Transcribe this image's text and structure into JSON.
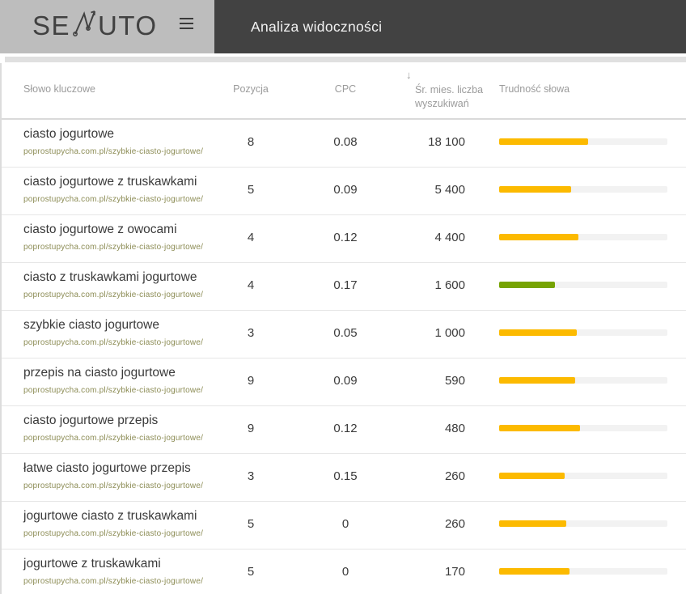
{
  "header": {
    "logo_prefix": "SE",
    "logo_suffix": "UTO",
    "title": "Analiza widoczności"
  },
  "columns": {
    "keyword": "Słowo kluczowe",
    "position": "Pozycja",
    "cpc": "CPC",
    "volume": "Śr. mies. liczba wyszukiwań",
    "difficulty": "Trudność słowa",
    "sort_icon": "↓"
  },
  "colors": {
    "topbar_left_bg": "#bdbdbd",
    "topbar_dark_bg": "#424242",
    "difficulty_amber": "#fcba00",
    "difficulty_green": "#76a303",
    "url_link": "#8c8c55"
  },
  "table": {
    "rows": [
      {
        "keyword": "ciasto jogurtowe",
        "url": "poprostupycha.com.pl/szybkie-ciasto-jogurtowe/",
        "position": "8",
        "cpc": "0.08",
        "volume": "18 100",
        "difficulty_pct": 53,
        "difficulty_color": "#fcba00"
      },
      {
        "keyword": "ciasto jogurtowe z truskawkami",
        "url": "poprostupycha.com.pl/szybkie-ciasto-jogurtowe/",
        "position": "5",
        "cpc": "0.09",
        "volume": "5 400",
        "difficulty_pct": 43,
        "difficulty_color": "#fcba00"
      },
      {
        "keyword": "ciasto jogurtowe z owocami",
        "url": "poprostupycha.com.pl/szybkie-ciasto-jogurtowe/",
        "position": "4",
        "cpc": "0.12",
        "volume": "4 400",
        "difficulty_pct": 47,
        "difficulty_color": "#fcba00"
      },
      {
        "keyword": "ciasto z truskawkami jogurtowe",
        "url": "poprostupycha.com.pl/szybkie-ciasto-jogurtowe/",
        "position": "4",
        "cpc": "0.17",
        "volume": "1 600",
        "difficulty_pct": 33,
        "difficulty_color": "#76a303"
      },
      {
        "keyword": "szybkie ciasto jogurtowe",
        "url": "poprostupycha.com.pl/szybkie-ciasto-jogurtowe/",
        "position": "3",
        "cpc": "0.05",
        "volume": "1 000",
        "difficulty_pct": 46,
        "difficulty_color": "#fcba00"
      },
      {
        "keyword": "przepis na ciasto jogurtowe",
        "url": "poprostupycha.com.pl/szybkie-ciasto-jogurtowe/",
        "position": "9",
        "cpc": "0.09",
        "volume": "590",
        "difficulty_pct": 45,
        "difficulty_color": "#fcba00"
      },
      {
        "keyword": "ciasto jogurtowe przepis",
        "url": "poprostupycha.com.pl/szybkie-ciasto-jogurtowe/",
        "position": "9",
        "cpc": "0.12",
        "volume": "480",
        "difficulty_pct": 48,
        "difficulty_color": "#fcba00"
      },
      {
        "keyword": "łatwe ciasto jogurtowe przepis",
        "url": "poprostupycha.com.pl/szybkie-ciasto-jogurtowe/",
        "position": "3",
        "cpc": "0.15",
        "volume": "260",
        "difficulty_pct": 39,
        "difficulty_color": "#fcba00"
      },
      {
        "keyword": "jogurtowe ciasto z truskawkami",
        "url": "poprostupycha.com.pl/szybkie-ciasto-jogurtowe/",
        "position": "5",
        "cpc": "0",
        "volume": "260",
        "difficulty_pct": 40,
        "difficulty_color": "#fcba00"
      },
      {
        "keyword": "jogurtowe z truskawkami",
        "url": "poprostupycha.com.pl/szybkie-ciasto-jogurtowe/",
        "position": "5",
        "cpc": "0",
        "volume": "170",
        "difficulty_pct": 42,
        "difficulty_color": "#fcba00"
      }
    ]
  }
}
